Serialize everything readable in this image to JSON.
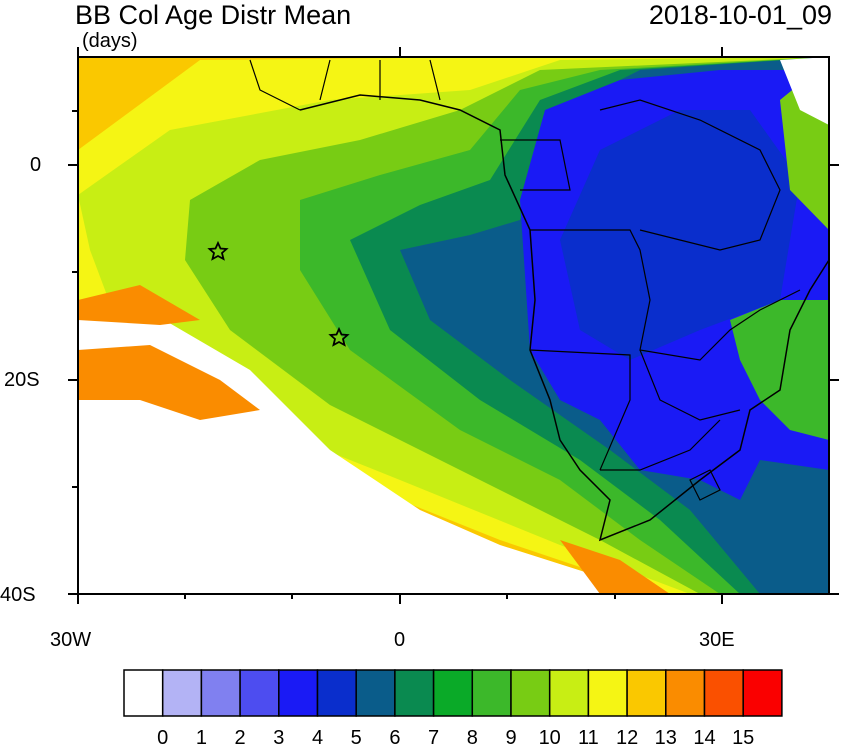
{
  "title": "BB Col Age Distr Mean",
  "units": "(days)",
  "valid_time": "2018-10-01_09",
  "y_labels": [
    "0",
    "20S",
    "40S"
  ],
  "x_labels": [
    "30W",
    "0",
    "30E"
  ],
  "colorbar": {
    "labels": [
      "0",
      "1",
      "2",
      "3",
      "4",
      "5",
      "6",
      "7",
      "8",
      "9",
      "10",
      "11",
      "12",
      "13",
      "14",
      "15"
    ],
    "colors": [
      "#ffffff",
      "#b3b3f5",
      "#8080f0",
      "#4d4df0",
      "#1a1af5",
      "#0a2ecc",
      "#0a5c8a",
      "#0a8a50",
      "#0aaa28",
      "#3cb82a",
      "#78cc14",
      "#c8ee14",
      "#f5f514",
      "#fac800",
      "#fa8c00",
      "#fa5000",
      "#fa0000"
    ]
  },
  "markers": [
    {
      "name": "star",
      "lon": -17,
      "lat": -8
    },
    {
      "name": "star",
      "lon": -6,
      "lat": -16
    }
  ]
}
